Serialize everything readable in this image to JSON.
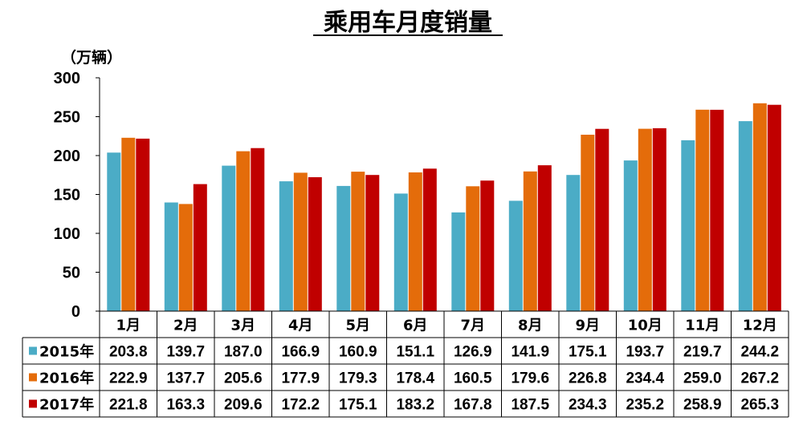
{
  "chart_data": {
    "type": "bar",
    "title": "乘用车月度销量",
    "ylabel": "（万辆）",
    "ylim": [
      0,
      300
    ],
    "yticks": [
      0,
      50,
      100,
      150,
      200,
      250,
      300
    ],
    "categories": [
      "1月",
      "2月",
      "3月",
      "4月",
      "5月",
      "6月",
      "7月",
      "8月",
      "9月",
      "10月",
      "11月",
      "12月"
    ],
    "series": [
      {
        "name": "2015年",
        "color": "#4BACC6",
        "values": [
          203.8,
          139.7,
          187.0,
          166.9,
          160.9,
          151.1,
          126.9,
          141.9,
          175.1,
          193.7,
          219.7,
          244.2
        ]
      },
      {
        "name": "2016年",
        "color": "#E46C0A",
        "values": [
          222.9,
          137.7,
          205.6,
          177.9,
          179.3,
          178.4,
          160.5,
          179.6,
          226.8,
          234.4,
          259.0,
          267.2
        ]
      },
      {
        "name": "2017年",
        "color": "#C00000",
        "values": [
          221.8,
          163.3,
          209.6,
          172.2,
          175.1,
          183.2,
          167.8,
          187.5,
          234.3,
          235.2,
          258.9,
          265.3
        ]
      }
    ],
    "data_table": true,
    "legend": "in-table"
  }
}
